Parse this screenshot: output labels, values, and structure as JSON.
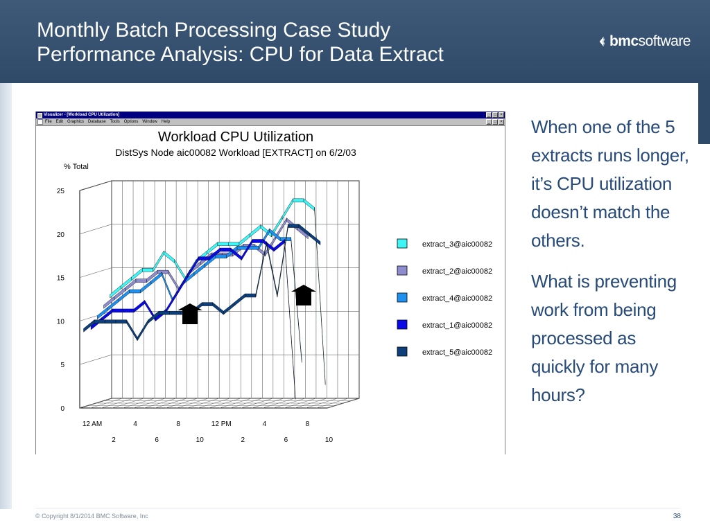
{
  "slide": {
    "title_line1": "Monthly Batch Processing Case Study",
    "title_line2": "Performance Analysis: CPU for Data Extract",
    "logo_bold": "bmc",
    "logo_rest": "software",
    "paragraph1": "When one of the 5 extracts runs longer, it’s CPU utilization doesn’t match the others.",
    "paragraph2": "What is preventing work from being processed as quickly for many hours?",
    "copyright": "© Copyright 8/1/2014 BMC Software, Inc",
    "page_number": "38"
  },
  "window": {
    "title": "Visualizer - [Workload CPU Utilization]",
    "menu": [
      "File",
      "Edit",
      "Graphics",
      "Database",
      "Tools",
      "Options",
      "Window",
      "Help"
    ],
    "buttons": [
      "_",
      "□",
      "×"
    ]
  },
  "colors": {
    "extract_3": "#3ff5f5",
    "extract_2": "#8c8ccf",
    "extract_4": "#1e90f0",
    "extract_1": "#0a0ae6",
    "extract_5": "#0d3f7a",
    "header_bg": "#2f4a68",
    "text_accent": "#274a78"
  },
  "chart_data": {
    "type": "line",
    "title": "Workload CPU Utilization",
    "subtitle": "DistSys Node aic00082 Workload [EXTRACT] on 6/2/03",
    "ylabel": "% Total",
    "ylim": [
      0,
      25
    ],
    "yticks": [
      0,
      5,
      10,
      15,
      20,
      25
    ],
    "x": [
      0,
      1,
      2,
      3,
      4,
      5,
      6,
      7,
      8,
      9,
      10,
      11,
      12,
      13,
      14,
      15,
      16,
      17,
      18,
      19,
      20,
      21,
      22,
      23
    ],
    "xtick_labels_top": [
      "12 AM",
      "4",
      "8",
      "12 PM",
      "4",
      "8"
    ],
    "xtick_labels_bottom": [
      "2",
      "6",
      "10",
      "2",
      "6",
      "10"
    ],
    "series": [
      {
        "name": "extract_3@aic00082",
        "values": [
          12,
          13,
          14,
          15,
          15,
          17,
          16,
          14,
          16,
          17,
          18,
          18,
          18,
          19,
          20,
          19,
          21,
          23,
          23,
          22,
          2,
          null,
          null,
          null
        ]
      },
      {
        "name": "extract_2@aic00082",
        "values": [
          11,
          12,
          13,
          14,
          14,
          15,
          15,
          13,
          15,
          16,
          17,
          17,
          17,
          18,
          18,
          17,
          19,
          21,
          20,
          19,
          null,
          null,
          null,
          null
        ]
      },
      {
        "name": "extract_4@aic00082",
        "values": [
          10,
          11,
          12,
          13,
          13,
          14,
          15,
          12,
          14,
          15,
          16,
          17,
          17,
          18,
          18,
          18,
          20,
          19,
          19,
          5,
          null,
          null,
          null,
          null
        ]
      },
      {
        "name": "extract_1@aic00082",
        "values": [
          9,
          10,
          11,
          11,
          11,
          12,
          10,
          11,
          13,
          15,
          17,
          17,
          18,
          18,
          17,
          19,
          19,
          18,
          19,
          1,
          null,
          null,
          null,
          null
        ]
      },
      {
        "name": "extract_5@aic00082",
        "values": [
          9,
          10,
          10,
          10,
          10,
          8,
          10,
          11,
          11,
          11,
          11,
          12,
          12,
          11,
          12,
          13,
          13,
          19,
          13,
          21,
          21,
          20,
          19,
          null
        ]
      }
    ],
    "legend_position": "right",
    "grid": true
  }
}
